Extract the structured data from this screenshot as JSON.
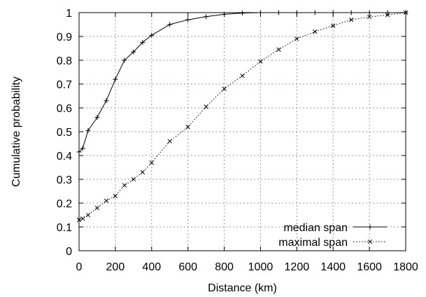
{
  "chart_data": {
    "type": "line",
    "title": "",
    "xlabel": "Distance (km)",
    "ylabel": "Cumulative probability",
    "xlim": [
      0,
      1800
    ],
    "ylim": [
      0,
      1
    ],
    "x_ticks": [
      "0",
      "200",
      "400",
      "600",
      "800",
      "1000",
      "1200",
      "1400",
      "1600",
      "1800"
    ],
    "y_ticks": [
      "0",
      "0.1",
      "0.2",
      "0.3",
      "0.4",
      "0.5",
      "0.6",
      "0.7",
      "0.8",
      "0.9",
      "1"
    ],
    "grid": true,
    "legend_position": "bottom-right",
    "series": [
      {
        "name": "median span",
        "line_style": "solid",
        "marker": "plus",
        "color": "#000000",
        "points": [
          [
            0,
            0.415
          ],
          [
            20,
            0.43
          ],
          [
            50,
            0.505
          ],
          [
            100,
            0.56
          ],
          [
            150,
            0.63
          ],
          [
            200,
            0.72
          ],
          [
            250,
            0.8
          ],
          [
            300,
            0.835
          ],
          [
            350,
            0.875
          ],
          [
            400,
            0.905
          ],
          [
            500,
            0.95
          ],
          [
            600,
            0.97
          ],
          [
            700,
            0.983
          ],
          [
            800,
            0.993
          ],
          [
            900,
            0.998
          ],
          [
            1000,
            1.0
          ],
          [
            1100,
            1.0
          ],
          [
            1200,
            1.0
          ],
          [
            1300,
            1.0
          ],
          [
            1400,
            1.0
          ],
          [
            1500,
            1.0
          ],
          [
            1600,
            1.0
          ],
          [
            1700,
            1.0
          ],
          [
            1800,
            1.0
          ]
        ]
      },
      {
        "name": "maximal span",
        "line_style": "dotted",
        "marker": "cross",
        "color": "#000000",
        "points": [
          [
            0,
            0.13
          ],
          [
            20,
            0.135
          ],
          [
            50,
            0.15
          ],
          [
            100,
            0.18
          ],
          [
            150,
            0.21
          ],
          [
            200,
            0.23
          ],
          [
            250,
            0.275
          ],
          [
            300,
            0.3
          ],
          [
            350,
            0.33
          ],
          [
            400,
            0.37
          ],
          [
            500,
            0.46
          ],
          [
            600,
            0.52
          ],
          [
            700,
            0.605
          ],
          [
            800,
            0.68
          ],
          [
            900,
            0.735
          ],
          [
            1000,
            0.795
          ],
          [
            1100,
            0.845
          ],
          [
            1200,
            0.89
          ],
          [
            1300,
            0.92
          ],
          [
            1400,
            0.945
          ],
          [
            1500,
            0.97
          ],
          [
            1600,
            0.982
          ],
          [
            1700,
            0.99
          ],
          [
            1800,
            1.0
          ]
        ]
      }
    ]
  }
}
